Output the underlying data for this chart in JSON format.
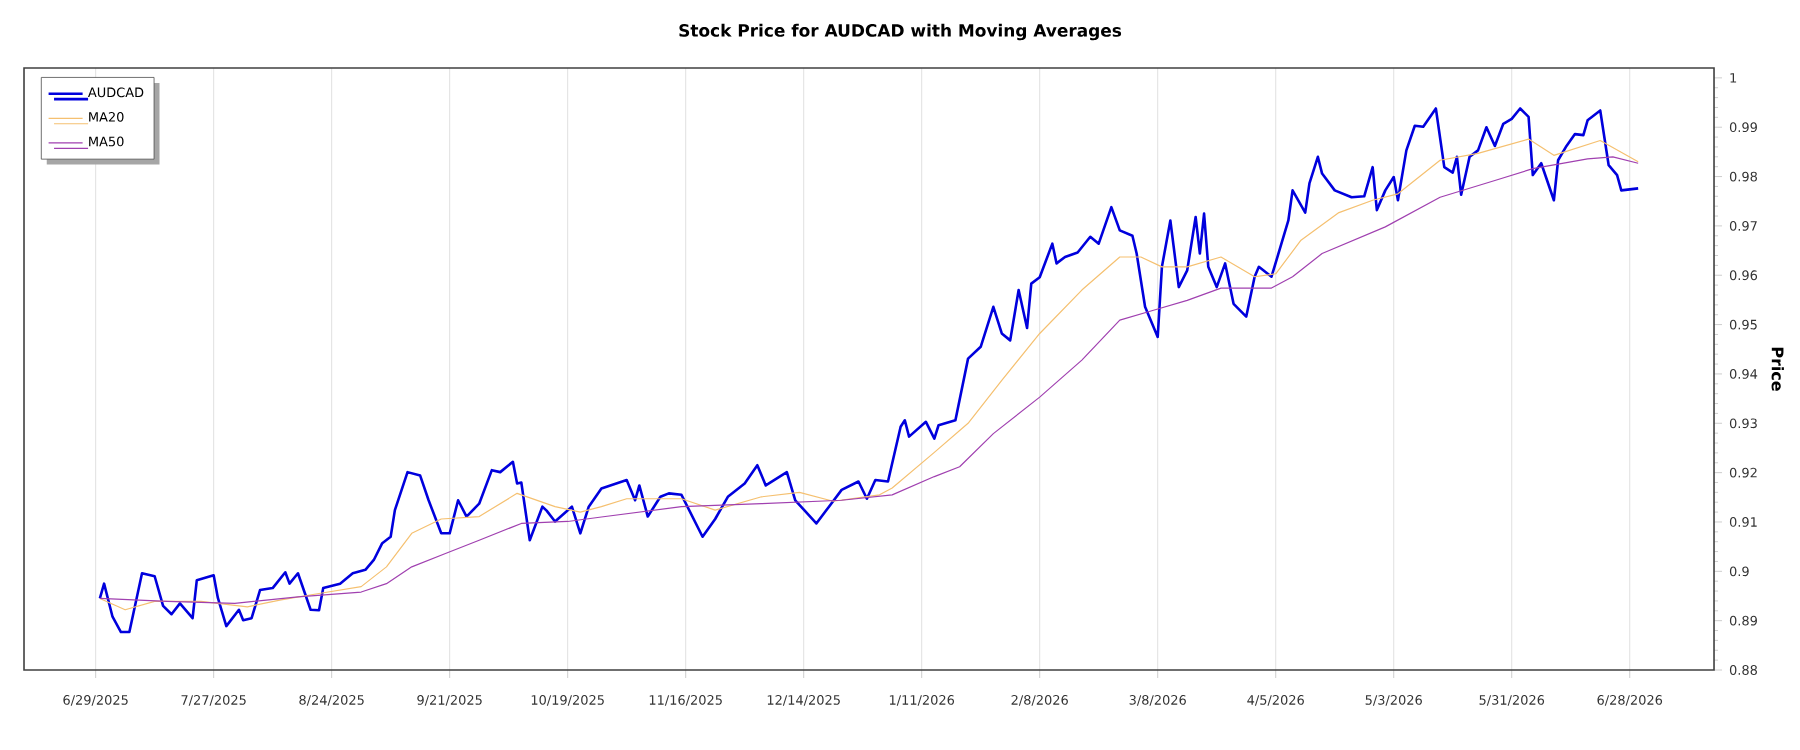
{
  "chart_data": {
    "type": "line",
    "title": "Stock Price for AUDCAD with Moving Averages",
    "ylabel": "Price",
    "x": [
      "2025-06-30",
      "2025-07-01",
      "2025-07-03",
      "2025-07-05",
      "2025-07-07",
      "2025-07-10",
      "2025-07-13",
      "2025-07-15",
      "2025-07-17",
      "2025-07-19",
      "2025-07-22",
      "2025-07-23",
      "2025-07-27",
      "2025-07-28",
      "2025-07-30",
      "2025-08-02",
      "2025-08-03",
      "2025-08-05",
      "2025-08-07",
      "2025-08-10",
      "2025-08-13",
      "2025-08-14",
      "2025-08-16",
      "2025-08-19",
      "2025-08-21",
      "2025-08-22",
      "2025-08-26",
      "2025-08-29",
      "2025-09-01",
      "2025-09-03",
      "2025-09-05",
      "2025-09-07",
      "2025-09-08",
      "2025-09-11",
      "2025-09-14",
      "2025-09-16",
      "2025-09-19",
      "2025-09-21",
      "2025-09-23",
      "2025-09-25",
      "2025-09-28",
      "2025-10-01",
      "2025-10-03",
      "2025-10-06",
      "2025-10-07",
      "2025-10-08",
      "2025-10-10",
      "2025-10-13",
      "2025-10-14",
      "2025-10-16",
      "2025-10-20",
      "2025-10-22",
      "2025-10-24",
      "2025-10-27",
      "2025-11-02",
      "2025-11-04",
      "2025-11-05",
      "2025-11-07",
      "2025-11-10",
      "2025-11-12",
      "2025-11-15",
      "2025-11-20",
      "2025-11-23",
      "2025-11-26",
      "2025-11-30",
      "2025-12-03",
      "2025-12-05",
      "2025-12-10",
      "2025-12-12",
      "2025-12-17",
      "2025-12-20",
      "2025-12-23",
      "2025-12-27",
      "2025-12-29",
      "2025-12-31",
      "2026-01-03",
      "2026-01-06",
      "2026-01-07",
      "2026-01-08",
      "2026-01-12",
      "2026-01-14",
      "2026-01-15",
      "2026-01-19",
      "2026-01-22",
      "2026-01-25",
      "2026-01-28",
      "2026-01-30",
      "2026-02-01",
      "2026-02-03",
      "2026-02-05",
      "2026-02-06",
      "2026-02-08",
      "2026-02-11",
      "2026-02-12",
      "2026-02-14",
      "2026-02-17",
      "2026-02-20",
      "2026-02-22",
      "2026-02-25",
      "2026-02-27",
      "2026-03-02",
      "2026-03-03",
      "2026-03-05",
      "2026-03-08",
      "2026-03-09",
      "2026-03-11",
      "2026-03-13",
      "2026-03-15",
      "2026-03-17",
      "2026-03-18",
      "2026-03-19",
      "2026-03-20",
      "2026-03-22",
      "2026-03-24",
      "2026-03-26",
      "2026-03-29",
      "2026-03-31",
      "2026-04-01",
      "2026-04-04",
      "2026-04-08",
      "2026-04-09",
      "2026-04-12",
      "2026-04-13",
      "2026-04-15",
      "2026-04-16",
      "2026-04-19",
      "2026-04-23",
      "2026-04-26",
      "2026-04-28",
      "2026-04-29",
      "2026-05-01",
      "2026-05-03",
      "2026-05-04",
      "2026-05-06",
      "2026-05-08",
      "2026-05-10",
      "2026-05-13",
      "2026-05-15",
      "2026-05-17",
      "2026-05-18",
      "2026-05-19",
      "2026-05-21",
      "2026-05-23",
      "2026-05-25",
      "2026-05-27",
      "2026-05-29",
      "2026-05-31",
      "2026-06-02",
      "2026-06-04",
      "2026-06-05",
      "2026-06-07",
      "2026-06-10",
      "2026-06-11",
      "2026-06-13",
      "2026-06-15",
      "2026-06-17",
      "2026-06-18",
      "2026-06-21",
      "2026-06-23",
      "2026-06-25",
      "2026-06-26",
      "2026-06-30"
    ],
    "series": [
      {
        "name": "AUDCAD",
        "color": "#0000dd",
        "values": [
          0.8945,
          0.8975,
          0.8908,
          0.8877,
          0.8877,
          0.8996,
          0.899,
          0.893,
          0.8913,
          0.8935,
          0.8905,
          0.8982,
          0.8992,
          0.8946,
          0.8889,
          0.8922,
          0.8901,
          0.8905,
          0.8962,
          0.8966,
          0.8998,
          0.8975,
          0.8996,
          0.8922,
          0.8921,
          0.8966,
          0.8975,
          0.8996,
          0.9003,
          0.9023,
          0.9057,
          0.907,
          0.9124,
          0.9201,
          0.9194,
          0.9144,
          0.9077,
          0.9077,
          0.9144,
          0.9111,
          0.9137,
          0.9205,
          0.9201,
          0.9222,
          0.9178,
          0.918,
          0.9063,
          0.9131,
          0.9123,
          0.9101,
          0.9131,
          0.9077,
          0.9131,
          0.9168,
          0.9185,
          0.9144,
          0.9174,
          0.9111,
          0.9151,
          0.9158,
          0.9155,
          0.907,
          0.9106,
          0.9151,
          0.9178,
          0.9215,
          0.9174,
          0.9201,
          0.9144,
          0.9097,
          0.9131,
          0.9165,
          0.9182,
          0.9147,
          0.9185,
          0.9182,
          0.9293,
          0.9306,
          0.9273,
          0.9303,
          0.9269,
          0.9296,
          0.9306,
          0.9431,
          0.9455,
          0.9536,
          0.9482,
          0.9468,
          0.957,
          0.9493,
          0.9583,
          0.9596,
          0.9664,
          0.9624,
          0.9637,
          0.9646,
          0.9678,
          0.9664,
          0.9738,
          0.9691,
          0.968,
          0.9644,
          0.9536,
          0.9475,
          0.9617,
          0.9711,
          0.9576,
          0.961,
          0.9718,
          0.9644,
          0.9725,
          0.9617,
          0.9576,
          0.9624,
          0.9542,
          0.9516,
          0.9597,
          0.9617,
          0.9597,
          0.9711,
          0.9772,
          0.9727,
          0.9786,
          0.984,
          0.9806,
          0.9772,
          0.9758,
          0.976,
          0.9819,
          0.9732,
          0.9772,
          0.9799,
          0.9752,
          0.9853,
          0.9903,
          0.9901,
          0.9938,
          0.9819,
          0.9808,
          0.984,
          0.9763,
          0.984,
          0.9853,
          0.99,
          0.9862,
          0.9907,
          0.9917,
          0.9938,
          0.9921,
          0.9803,
          0.9827,
          0.9752,
          0.9833,
          0.9862,
          0.9886,
          0.9884,
          0.9914,
          0.9934,
          0.9823,
          0.9803,
          0.9772,
          0.9776
        ]
      },
      {
        "name": "MA20",
        "color": "#f5c070",
        "x": [
          "2025-06-30",
          "2025-07-06",
          "2025-07-13",
          "2025-07-24",
          "2025-08-04",
          "2025-08-12",
          "2025-08-21",
          "2025-08-31",
          "2025-09-06",
          "2025-09-12",
          "2025-09-19",
          "2025-09-28",
          "2025-10-07",
          "2025-10-16",
          "2025-10-22",
          "2025-10-27",
          "2025-11-02",
          "2025-11-15",
          "2025-11-23",
          "2025-12-04",
          "2025-12-13",
          "2025-12-21",
          "2026-01-01",
          "2026-01-04",
          "2026-01-14",
          "2026-01-22",
          "2026-01-30",
          "2026-02-08",
          "2026-02-18",
          "2026-02-27",
          "2026-03-04",
          "2026-03-09",
          "2026-03-15",
          "2026-03-23",
          "2026-03-31",
          "2026-04-05",
          "2026-04-11",
          "2026-04-20",
          "2026-04-28",
          "2026-05-04",
          "2026-05-14",
          "2026-05-23",
          "2026-06-04",
          "2026-06-10",
          "2026-06-21",
          "2026-06-30"
        ],
        "values": [
          0.8945,
          0.8922,
          0.8939,
          0.8939,
          0.8928,
          0.8942,
          0.8955,
          0.8969,
          0.9009,
          0.9077,
          0.9106,
          0.9111,
          0.9158,
          0.9131,
          0.912,
          0.9131,
          0.9147,
          0.9147,
          0.9124,
          0.9151,
          0.916,
          0.9142,
          0.9155,
          0.9169,
          0.9241,
          0.93,
          0.9387,
          0.9482,
          0.957,
          0.9637,
          0.9637,
          0.9617,
          0.9617,
          0.9637,
          0.9597,
          0.9603,
          0.9671,
          0.9727,
          0.9752,
          0.9765,
          0.9833,
          0.9847,
          0.9876,
          0.9843,
          0.9873,
          0.983
        ]
      },
      {
        "name": "MA50",
        "color": "#a040b0",
        "x": [
          "2025-06-30",
          "2025-07-16",
          "2025-08-01",
          "2025-08-16",
          "2025-08-31",
          "2025-09-06",
          "2025-09-12",
          "2025-09-20",
          "2025-09-28",
          "2025-10-08",
          "2025-10-19",
          "2025-10-27",
          "2025-11-15",
          "2025-12-04",
          "2025-12-23",
          "2026-01-04",
          "2026-01-14",
          "2026-01-20",
          "2026-01-28",
          "2026-02-08",
          "2026-02-18",
          "2026-02-27",
          "2026-03-07",
          "2026-03-15",
          "2026-03-23",
          "2026-04-04",
          "2026-04-09",
          "2026-04-16",
          "2026-05-01",
          "2026-05-14",
          "2026-05-27",
          "2026-06-05",
          "2026-06-18",
          "2026-06-24",
          "2026-06-30"
        ],
        "values": [
          0.8945,
          0.8939,
          0.8935,
          0.8948,
          0.8958,
          0.8975,
          0.9009,
          0.9036,
          0.9063,
          0.9097,
          0.9101,
          0.911,
          0.9131,
          0.9137,
          0.9144,
          0.9155,
          0.9192,
          0.9212,
          0.9279,
          0.9353,
          0.9428,
          0.9509,
          0.9529,
          0.9549,
          0.9574,
          0.9574,
          0.9597,
          0.9644,
          0.9698,
          0.9758,
          0.9792,
          0.9816,
          0.9836,
          0.984,
          0.9827
        ]
      }
    ],
    "xlim": [
      "2025-06-12",
      "2026-07-18"
    ],
    "xticks": [
      {
        "value": "2025-06-29",
        "label": "6/29/2025"
      },
      {
        "value": "2025-07-27",
        "label": "7/27/2025"
      },
      {
        "value": "2025-08-24",
        "label": "8/24/2025"
      },
      {
        "value": "2025-09-21",
        "label": "9/21/2025"
      },
      {
        "value": "2025-10-19",
        "label": "10/19/2025"
      },
      {
        "value": "2025-11-16",
        "label": "11/16/2025"
      },
      {
        "value": "2025-12-14",
        "label": "12/14/2025"
      },
      {
        "value": "2026-01-11",
        "label": "1/11/2026"
      },
      {
        "value": "2026-02-08",
        "label": "2/8/2026"
      },
      {
        "value": "2026-03-08",
        "label": "3/8/2026"
      },
      {
        "value": "2026-04-05",
        "label": "4/5/2026"
      },
      {
        "value": "2026-05-03",
        "label": "5/3/2026"
      },
      {
        "value": "2026-05-31",
        "label": "5/31/2026"
      },
      {
        "value": "2026-06-28",
        "label": "6/28/2026"
      }
    ],
    "ylim": [
      0.88,
      1.002
    ],
    "yticks": [
      0.88,
      0.89,
      0.9,
      0.91,
      0.92,
      0.93,
      0.94,
      0.95,
      0.96,
      0.97,
      0.98,
      0.99,
      1
    ],
    "grid": "x",
    "legend": "top left"
  }
}
